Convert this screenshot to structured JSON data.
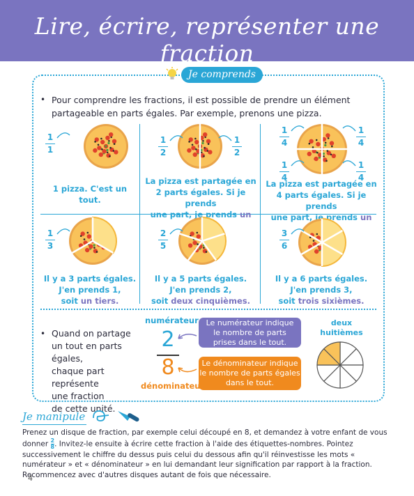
{
  "header": {
    "title": "Lire, écrire, représenter une fraction"
  },
  "section_tag": "Je comprends",
  "intro": "Pour comprendre les fractions, il est possible de prendre un élément partageable en parts égales. Par exemple, prenons une pizza.",
  "cells": [
    {
      "fractions": [
        {
          "num": "1",
          "den": "1"
        }
      ],
      "caption_lines": [
        "1 pizza. C'est un tout."
      ],
      "accent": "",
      "parts": 1,
      "taken": 0
    },
    {
      "fractions": [
        {
          "num": "1",
          "den": "2"
        },
        {
          "num": "1",
          "den": "2"
        }
      ],
      "caption_lines": [
        "La pizza est partagée en",
        "2 parts égales. Si je prends",
        "une part, je prends "
      ],
      "accent": "un demi.",
      "parts": 2,
      "taken": 0
    },
    {
      "fractions": [
        {
          "num": "1",
          "den": "4"
        },
        {
          "num": "1",
          "den": "4"
        },
        {
          "num": "1",
          "den": "4"
        },
        {
          "num": "1",
          "den": "4"
        }
      ],
      "caption_lines": [
        "La pizza est partagée en",
        "4 parts égales. Si je prends",
        "une part, je prends "
      ],
      "accent": "un quart.",
      "parts": 4,
      "taken": 0
    },
    {
      "fractions": [
        {
          "num": "1",
          "den": "3"
        }
      ],
      "caption_lines": [
        "Il y a 3 parts égales.",
        "J'en prends 1,",
        "soit "
      ],
      "accent": "un tiers.",
      "parts": 3,
      "taken": 1
    },
    {
      "fractions": [
        {
          "num": "2",
          "den": "5"
        }
      ],
      "caption_lines": [
        "Il y a 5 parts égales.",
        "J'en prends 2,",
        "soit "
      ],
      "accent": "deux cinquièmes.",
      "parts": 5,
      "taken": 2
    },
    {
      "fractions": [
        {
          "num": "3",
          "den": "6"
        }
      ],
      "caption_lines": [
        "Il y a 6 parts égales.",
        "J'en prends 3,",
        "soit "
      ],
      "accent": "trois sixièmes.",
      "parts": 6,
      "taken": 3
    }
  ],
  "bottom": {
    "bullet_lines": [
      "Quand on partage",
      "un tout en parts égales,",
      "chaque part représente",
      "une fraction",
      "de cette unité."
    ],
    "numerator_label": "numérateur",
    "denominator_label": "dénominateur",
    "numerator": "2",
    "denominator": "8",
    "numerator_box": [
      "Le numérateur indique",
      "le nombre de parts",
      "prises dans le tout."
    ],
    "denominator_box": [
      "Le dénominateur indique",
      "le nombre de parts égales",
      "dans le tout."
    ],
    "disc_label": [
      "deux",
      "huitièmes"
    ],
    "disc_parts": 8,
    "disc_taken": 2
  },
  "manipule": {
    "title": "Je manipule",
    "text_before": "Prenez un disque de fraction, par exemple celui découpé en 8, et demandez à votre enfant de vous donner ",
    "frac_num": "2",
    "frac_den": "8",
    "text_after": ". Invitez-le ensuite à écrire cette fraction à l'aide des étiquettes-nombres. Pointez successivement le chiffre du dessus puis celui du dessous afin qu'il réinvestisse les mots « numérateur » et « dénominateur » en lui demandant leur signification par rapport à la fraction. Recommencez avec d'autres disques autant de fois que nécessaire."
  },
  "page_number": "4",
  "colors": {
    "purple": "#7a74c0",
    "blue": "#2aa6d6",
    "orange": "#f08a1e",
    "cheese": "#f9c25a",
    "sauce": "#e0412b"
  }
}
